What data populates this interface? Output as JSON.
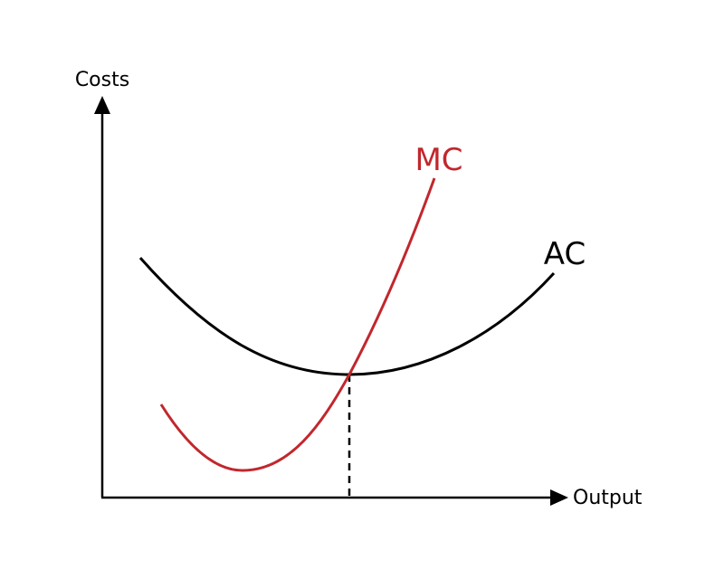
{
  "y_axis": {
    "label": "Costs"
  },
  "x_axis": {
    "label": "Output"
  },
  "curves": [
    {
      "label": "MC",
      "color": "#c1272d"
    },
    {
      "label": "AC",
      "color": "#000000"
    }
  ]
}
